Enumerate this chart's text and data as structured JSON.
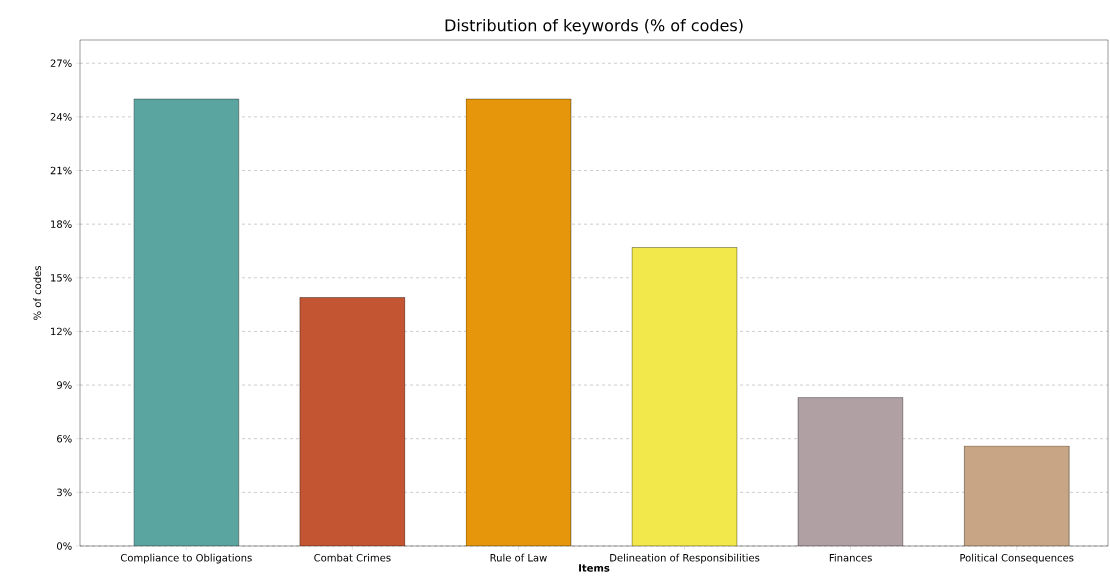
{
  "chart_data": {
    "type": "bar",
    "title": "Distribution of keywords (% of codes)",
    "xlabel": "Items",
    "ylabel": "% of codes",
    "categories": [
      "Compliance to Obligations",
      "Combat Crimes",
      "Rule of Law",
      "Delineation of Responsibilities",
      "Finances",
      "Political Consequences"
    ],
    "values": [
      25,
      13.9,
      25,
      16.7,
      8.3,
      5.6
    ],
    "colors": [
      "#5ba5a0",
      "#c45532",
      "#e5960b",
      "#f3e84b",
      "#b0a0a4",
      "#c8a584"
    ],
    "ylim": [
      0,
      28.3
    ],
    "yticks": [
      {
        "value": 0,
        "label": "0%"
      },
      {
        "value": 3,
        "label": "3%"
      },
      {
        "value": 6,
        "label": "6%"
      },
      {
        "value": 9,
        "label": "9%"
      },
      {
        "value": 12,
        "label": "12%"
      },
      {
        "value": 15,
        "label": "15%"
      },
      {
        "value": 18,
        "label": "18%"
      },
      {
        "value": 21,
        "label": "21%"
      },
      {
        "value": 24,
        "label": "24%"
      },
      {
        "value": 27,
        "label": "27%"
      }
    ],
    "grid": "y"
  }
}
